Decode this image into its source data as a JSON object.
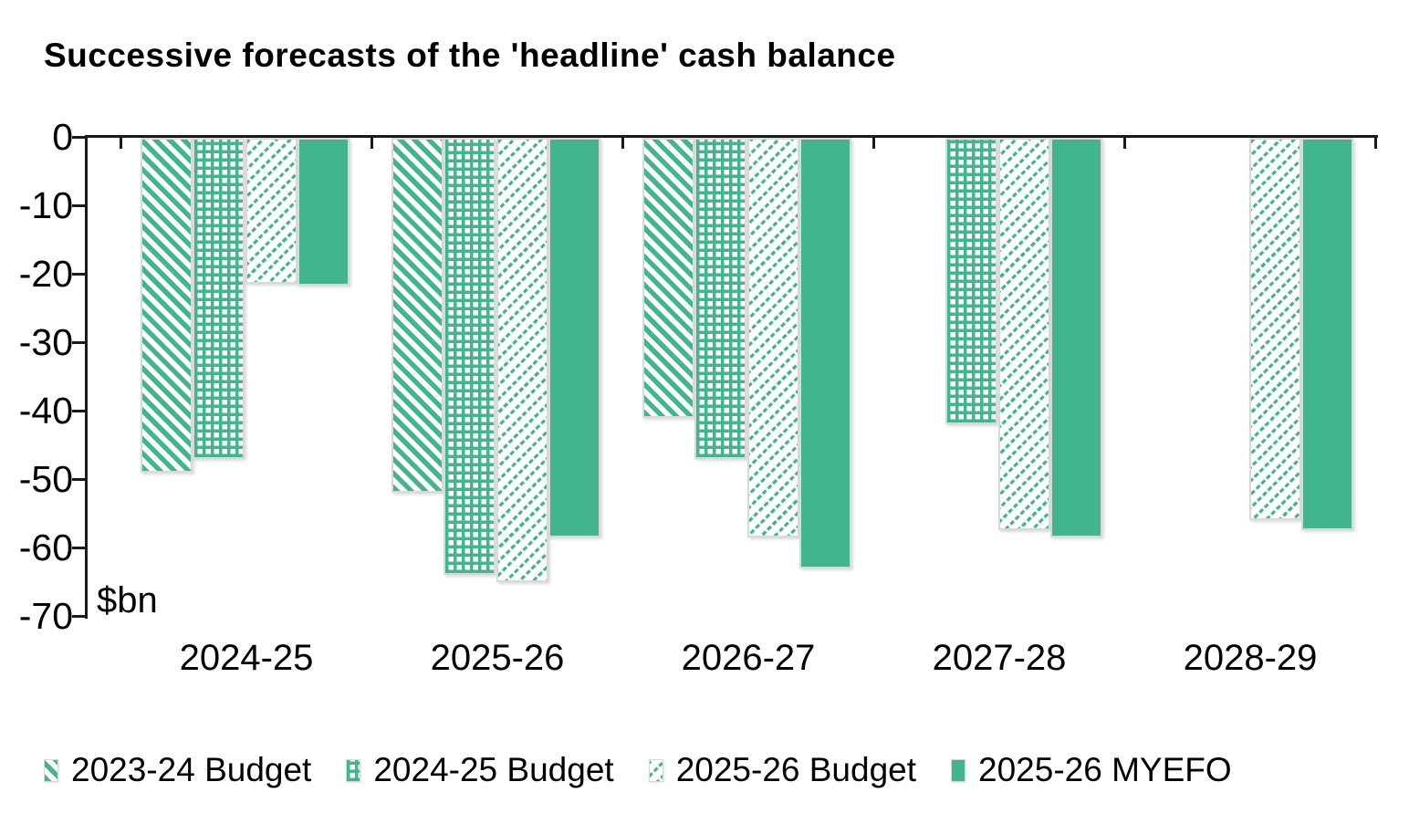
{
  "title": "Successive forecasts of the 'headline' cash balance",
  "chart_data": {
    "type": "bar",
    "title": "Successive forecasts of the 'headline' cash balance",
    "unit_label": "$bn",
    "categories": [
      "2024-25",
      "2025-26",
      "2026-27",
      "2027-28",
      "2028-29"
    ],
    "series": [
      {
        "name": "2023-24 Budget",
        "pattern": "diagonal-down-hatch",
        "values": [
          -49,
          -52,
          -41,
          null,
          null
        ]
      },
      {
        "name": "2024-25 Budget",
        "pattern": "dotted-grid-hatch",
        "values": [
          -47,
          -64,
          -47,
          -42,
          null
        ]
      },
      {
        "name": "2025-26 Budget",
        "pattern": "diagonal-up-light-hatch",
        "values": [
          -21.5,
          -65,
          -58.5,
          -57.5,
          -56
        ]
      },
      {
        "name": "2025-26 MYEFO",
        "pattern": "solid",
        "values": [
          -21.7,
          -58.5,
          -63,
          -58.5,
          -57.5
        ]
      }
    ],
    "yticks": [
      0,
      -10,
      -20,
      -30,
      -40,
      -50,
      -60,
      -70
    ],
    "ylim": [
      0,
      -70
    ],
    "grid": false,
    "legend_position": "bottom",
    "colors": {
      "green": "#42B48E",
      "bar_border": "#D9D9D9",
      "axis": "#1a1a1a",
      "text": "#000000"
    }
  }
}
